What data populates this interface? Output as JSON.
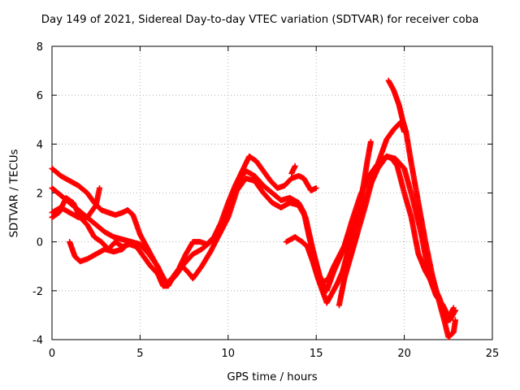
{
  "chart_data": {
    "type": "scatter",
    "title": "Day 149 of 2021, Sidereal Day-to-day VTEC variation (SDTVAR) for receiver coba",
    "xlabel": "GPS time / hours",
    "ylabel": "SDTVAR / TECUs",
    "xlim": [
      0,
      25
    ],
    "ylim": [
      -4,
      8
    ],
    "xticks": [
      "0",
      "5",
      "10",
      "15",
      "20",
      "25"
    ],
    "yticks": [
      "-4",
      "-2",
      "0",
      "2",
      "4",
      "6",
      "8"
    ],
    "grid": true,
    "marker": "+",
    "color": "#ff0000",
    "series": [
      {
        "points": [
          [
            0.0,
            3.0
          ],
          [
            0.5,
            2.7
          ],
          [
            1.0,
            2.5
          ],
          [
            1.5,
            2.3
          ],
          [
            2.0,
            2.0
          ],
          [
            2.4,
            1.6
          ],
          [
            2.8,
            1.3
          ],
          [
            3.2,
            1.2
          ],
          [
            3.6,
            1.1
          ],
          [
            4.0,
            1.2
          ],
          [
            4.3,
            1.3
          ],
          [
            4.6,
            1.1
          ],
          [
            4.8,
            0.7
          ],
          [
            5.0,
            0.3
          ],
          [
            5.3,
            -0.1
          ],
          [
            5.6,
            -0.5
          ],
          [
            5.9,
            -0.9
          ],
          [
            6.2,
            -1.3
          ],
          [
            6.5,
            -1.7
          ],
          [
            6.8,
            -1.5
          ],
          [
            7.2,
            -1.1
          ],
          [
            7.6,
            -0.5
          ],
          [
            8.0,
            0.0
          ],
          [
            8.4,
            0.0
          ],
          [
            8.8,
            -0.1
          ],
          [
            9.2,
            0.2
          ],
          [
            9.6,
            0.8
          ],
          [
            10.0,
            1.6
          ],
          [
            10.4,
            2.3
          ],
          [
            10.8,
            2.9
          ],
          [
            11.2,
            3.5
          ],
          [
            11.6,
            3.3
          ],
          [
            12.0,
            2.9
          ],
          [
            12.4,
            2.5
          ],
          [
            12.8,
            2.2
          ],
          [
            13.2,
            2.3
          ],
          [
            13.6,
            2.6
          ],
          [
            14.0,
            2.7
          ],
          [
            14.3,
            2.6
          ],
          [
            14.7,
            2.1
          ],
          [
            15.0,
            2.2
          ]
        ]
      },
      {
        "points": [
          [
            0.0,
            2.2
          ],
          [
            0.5,
            1.9
          ],
          [
            1.0,
            1.6
          ],
          [
            1.5,
            1.3
          ],
          [
            2.0,
            1.0
          ],
          [
            2.5,
            0.7
          ],
          [
            3.0,
            0.4
          ],
          [
            3.5,
            0.2
          ],
          [
            4.0,
            0.1
          ],
          [
            4.5,
            0.0
          ],
          [
            5.0,
            -0.1
          ],
          [
            5.5,
            -0.5
          ],
          [
            6.0,
            -1.0
          ],
          [
            6.3,
            -1.5
          ],
          [
            6.6,
            -1.7
          ],
          [
            7.0,
            -1.4
          ],
          [
            7.5,
            -0.9
          ],
          [
            8.0,
            -0.5
          ],
          [
            8.5,
            -0.3
          ],
          [
            9.0,
            0.0
          ],
          [
            9.5,
            0.4
          ],
          [
            10.0,
            1.3
          ],
          [
            10.5,
            2.4
          ],
          [
            11.0,
            2.9
          ],
          [
            11.5,
            2.7
          ],
          [
            12.0,
            2.3
          ],
          [
            12.5,
            2.0
          ],
          [
            13.0,
            1.7
          ],
          [
            13.5,
            1.8
          ],
          [
            14.0,
            1.6
          ],
          [
            14.3,
            1.2
          ],
          [
            14.6,
            0.2
          ],
          [
            15.0,
            -1.0
          ],
          [
            15.3,
            -1.7
          ],
          [
            15.7,
            -1.5
          ],
          [
            16.0,
            -1.0
          ],
          [
            16.5,
            -0.3
          ],
          [
            17.0,
            0.4
          ],
          [
            17.5,
            1.2
          ],
          [
            18.0,
            2.2
          ],
          [
            18.5,
            3.0
          ],
          [
            19.0,
            3.5
          ],
          [
            19.3,
            3.4
          ],
          [
            19.6,
            3.1
          ],
          [
            20.0,
            2.0
          ],
          [
            20.4,
            1.0
          ],
          [
            20.8,
            -0.5
          ],
          [
            21.2,
            -1.2
          ],
          [
            21.6,
            -1.7
          ],
          [
            22.0,
            -2.3
          ],
          [
            22.4,
            -3.3
          ],
          [
            22.8,
            -2.7
          ]
        ]
      },
      {
        "points": [
          [
            0.0,
            1.0
          ],
          [
            0.4,
            1.2
          ],
          [
            0.8,
            1.8
          ],
          [
            1.2,
            1.6
          ],
          [
            1.6,
            1.0
          ],
          [
            2.0,
            0.7
          ],
          [
            2.4,
            0.2
          ],
          [
            2.8,
            0.0
          ],
          [
            3.2,
            -0.3
          ],
          [
            3.6,
            0.0
          ],
          [
            4.0,
            -0.2
          ],
          [
            4.4,
            -0.1
          ],
          [
            4.8,
            -0.2
          ],
          [
            5.2,
            -0.6
          ],
          [
            5.6,
            -1.0
          ],
          [
            6.0,
            -1.3
          ],
          [
            6.3,
            -1.8
          ],
          [
            6.6,
            -1.8
          ],
          [
            7.0,
            -1.3
          ],
          [
            7.4,
            -1.0
          ],
          [
            7.8,
            -1.3
          ],
          [
            8.0,
            -1.5
          ],
          [
            8.5,
            -1.0
          ],
          [
            9.0,
            -0.4
          ],
          [
            9.5,
            0.3
          ],
          [
            10.0,
            1.0
          ],
          [
            10.5,
            2.1
          ],
          [
            11.0,
            2.6
          ],
          [
            11.5,
            2.5
          ],
          [
            12.0,
            2.0
          ],
          [
            12.5,
            1.6
          ],
          [
            13.0,
            1.4
          ],
          [
            13.5,
            1.6
          ],
          [
            14.0,
            1.5
          ],
          [
            14.4,
            1.0
          ],
          [
            14.8,
            -0.3
          ],
          [
            15.2,
            -1.4
          ],
          [
            15.6,
            -2.0
          ],
          [
            16.0,
            -1.2
          ],
          [
            16.5,
            -0.4
          ],
          [
            17.0,
            0.8
          ],
          [
            17.5,
            1.9
          ],
          [
            18.0,
            2.7
          ],
          [
            18.5,
            3.2
          ],
          [
            19.0,
            3.5
          ],
          [
            19.5,
            3.4
          ],
          [
            20.0,
            3.0
          ],
          [
            20.5,
            1.7
          ],
          [
            21.0,
            0.2
          ],
          [
            21.4,
            -1.4
          ],
          [
            21.8,
            -2.2
          ],
          [
            22.2,
            -2.6
          ],
          [
            22.6,
            -3.2
          ],
          [
            22.9,
            -2.8
          ]
        ]
      },
      {
        "points": [
          [
            0.0,
            1.2
          ],
          [
            0.5,
            1.4
          ],
          [
            1.0,
            1.2
          ],
          [
            1.5,
            1.0
          ],
          [
            2.0,
            1.0
          ],
          [
            2.5,
            1.5
          ],
          [
            2.7,
            2.2
          ]
        ]
      },
      {
        "points": [
          [
            1.0,
            0.0
          ],
          [
            1.3,
            -0.6
          ],
          [
            1.6,
            -0.8
          ],
          [
            2.0,
            -0.7
          ],
          [
            2.5,
            -0.5
          ],
          [
            3.0,
            -0.3
          ],
          [
            3.5,
            -0.4
          ],
          [
            4.0,
            -0.3
          ],
          [
            4.4,
            0.0
          ]
        ]
      },
      {
        "points": [
          [
            13.6,
            2.8
          ],
          [
            13.8,
            3.1
          ]
        ]
      },
      {
        "points": [
          [
            13.3,
            0.0
          ],
          [
            13.8,
            0.2
          ],
          [
            14.2,
            0.0
          ],
          [
            14.5,
            -0.2
          ],
          [
            14.8,
            -0.8
          ],
          [
            15.1,
            -1.5
          ],
          [
            15.4,
            -2.1
          ],
          [
            15.6,
            -2.5
          ],
          [
            15.9,
            -2.1
          ],
          [
            16.2,
            -1.7
          ],
          [
            16.5,
            -1.2
          ],
          [
            16.8,
            -0.4
          ],
          [
            17.1,
            0.3
          ],
          [
            17.4,
            1.2
          ],
          [
            17.7,
            2.4
          ],
          [
            17.9,
            3.3
          ],
          [
            18.1,
            4.1
          ]
        ]
      },
      {
        "points": [
          [
            16.3,
            -2.6
          ],
          [
            16.6,
            -1.5
          ],
          [
            17.0,
            -0.5
          ],
          [
            17.4,
            0.5
          ],
          [
            17.8,
            1.5
          ],
          [
            18.2,
            2.6
          ],
          [
            18.6,
            3.4
          ],
          [
            19.0,
            4.2
          ],
          [
            19.4,
            4.6
          ],
          [
            19.8,
            4.9
          ],
          [
            20.0,
            4.5
          ]
        ]
      },
      {
        "points": [
          [
            19.1,
            6.6
          ],
          [
            19.4,
            6.2
          ],
          [
            19.7,
            5.6
          ],
          [
            19.9,
            5.0
          ],
          [
            20.1,
            4.5
          ],
          [
            20.4,
            3.2
          ],
          [
            20.8,
            1.6
          ],
          [
            21.2,
            0.0
          ],
          [
            21.6,
            -1.4
          ],
          [
            22.0,
            -2.5
          ],
          [
            22.3,
            -3.3
          ],
          [
            22.5,
            -3.9
          ],
          [
            22.8,
            -3.7
          ],
          [
            22.9,
            -3.2
          ]
        ]
      }
    ]
  }
}
